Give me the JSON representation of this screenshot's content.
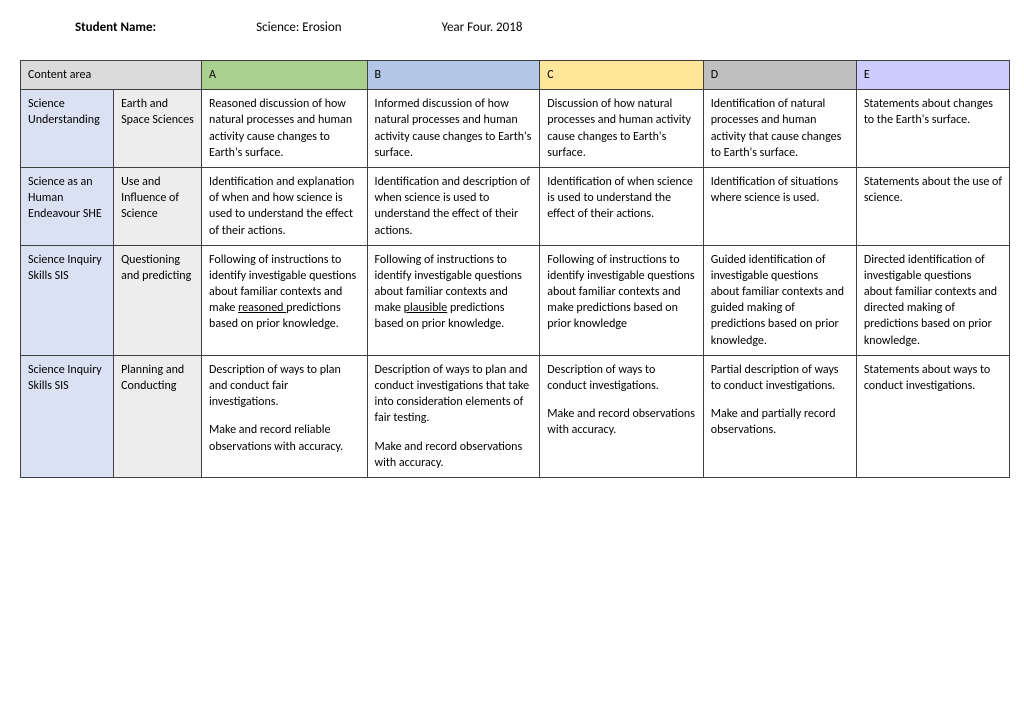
{
  "header": {
    "student_label": "Student Name:",
    "subject": "Science: Erosion",
    "year": "Year Four. 2018"
  },
  "table": {
    "headers": {
      "content_area": "Content area",
      "a": "A",
      "b": "B",
      "c": "C",
      "d": "D",
      "e": "E"
    },
    "colors": {
      "hdr_content": "#dbdbdb",
      "hdr_a": "#a9d08e",
      "hdr_b": "#b4c6e7",
      "hdr_c": "#ffe699",
      "hdr_d": "#bfbfbf",
      "hdr_e": "#ccccff",
      "row_cat1": "#d9e1f2",
      "row_cat2": "#ededed",
      "border": "#404040"
    },
    "rows": [
      {
        "cat1": "Science Understanding",
        "cat2": "Earth and Space Sciences",
        "a": "Reasoned discussion of how natural processes and human activity cause changes to Earth's surface.",
        "b": "Informed discussion of how natural processes and human activity cause changes to Earth's surface.",
        "c": "Discussion of how natural processes and human activity cause changes to Earth's surface.",
        "d": "Identification of natural processes and human activity that cause changes to Earth's surface.",
        "e": "Statements about changes to the Earth's surface."
      },
      {
        "cat1": "Science as an Human Endeavour SHE",
        "cat2": "Use and Influence of Science",
        "a": "Identification and explanation of when and how science is used to understand the effect of their actions.",
        "b": "Identification and description of when science is used to understand the effect of their actions.",
        "c": "Identification of when science is used to understand the effect of their actions.",
        "d": "Identification of situations where science is used.",
        "e": "Statements about the use of science."
      },
      {
        "cat1": "Science Inquiry Skills SIS",
        "cat2": "Questioning and predicting",
        "a_pre": "Following of instructions to identify investigable questions about familiar contexts and make ",
        "a_ul": "reasoned ",
        "a_post": "predictions based on prior knowledge.",
        "b_pre": "Following of instructions to identify investigable questions about familiar contexts and make ",
        "b_ul": "plausible",
        "b_post": " predictions based on prior knowledge.",
        "c": "Following of instructions to identify investigable questions about familiar contexts and make predictions based on prior knowledge",
        "d": "Guided identification of investigable questions about familiar contexts and guided making of predictions based on prior knowledge.",
        "e": "Directed identification of investigable questions about familiar contexts and directed making of predictions based on prior knowledge."
      },
      {
        "cat1": "Science Inquiry Skills SIS",
        "cat2": "Planning and Conducting",
        "a_p1": "Description of ways to plan and conduct fair investigations.",
        "a_p2": "Make and record reliable observations with accuracy.",
        "b_p1": "Description of ways to plan and conduct investigations that take into consideration elements of fair testing.",
        "b_p2": "Make and record observations with accuracy.",
        "c_p1": "Description of ways to conduct investigations.",
        "c_p2": "Make and record observations with accuracy.",
        "d_p1": "Partial description of ways to conduct investigations.",
        "d_p2": "Make and partially record observations.",
        "e": "Statements about ways to conduct investigations."
      }
    ]
  }
}
